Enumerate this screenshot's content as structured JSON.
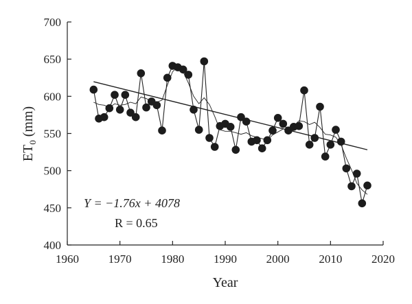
{
  "chart_data": {
    "type": "line",
    "x": [
      1965,
      1966,
      1967,
      1968,
      1969,
      1970,
      1971,
      1972,
      1973,
      1974,
      1975,
      1976,
      1977,
      1978,
      1979,
      1980,
      1981,
      1982,
      1983,
      1984,
      1985,
      1986,
      1987,
      1988,
      1989,
      1990,
      1991,
      1992,
      1993,
      1994,
      1995,
      1996,
      1997,
      1998,
      1999,
      2000,
      2001,
      2002,
      2003,
      2004,
      2005,
      2006,
      2007,
      2008,
      2009,
      2010,
      2011,
      2012,
      2013,
      2014,
      2015,
      2016,
      2017
    ],
    "series": [
      {
        "values": [
          609,
          570,
          572,
          584,
          602,
          582,
          602,
          578,
          572,
          631,
          585,
          593,
          588,
          554,
          625,
          641,
          639,
          636,
          629,
          582,
          555,
          647,
          544,
          532,
          560,
          563,
          559,
          528,
          572,
          566,
          539,
          541,
          530,
          541,
          554,
          571,
          563,
          554,
          559,
          560,
          608,
          535,
          544,
          586,
          519,
          535,
          555,
          539,
          503,
          479,
          496,
          456,
          480
        ]
      },
      {
        "values": [
          592,
          589,
          588,
          585,
          590,
          588,
          589,
          592,
          590,
          599,
          597,
          593,
          592,
          595,
          615,
          633,
          640,
          633,
          618,
          600,
          590,
          598,
          589,
          573,
          555,
          553,
          553,
          551,
          549,
          551,
          547,
          545,
          543,
          541,
          548,
          552,
          556,
          556,
          560,
          567,
          566,
          562,
          565,
          558,
          549,
          548,
          545,
          535,
          517,
          501,
          483,
          474,
          468
        ]
      }
    ],
    "xlabel": "Year",
    "ylabel": "ET0 (mm)",
    "xlim": [
      1960,
      2020
    ],
    "ylim": [
      400,
      700
    ],
    "x_ticks": [
      1960,
      1970,
      1980,
      1990,
      2000,
      2010,
      2020
    ],
    "y_ticks": [
      400,
      450,
      500,
      550,
      600,
      650,
      700
    ],
    "trend": {
      "slope": -1.76,
      "intercept": 4078,
      "equation": "Y = −1.76x + 4078",
      "r_text": "R = 0.65"
    },
    "grid": false
  }
}
